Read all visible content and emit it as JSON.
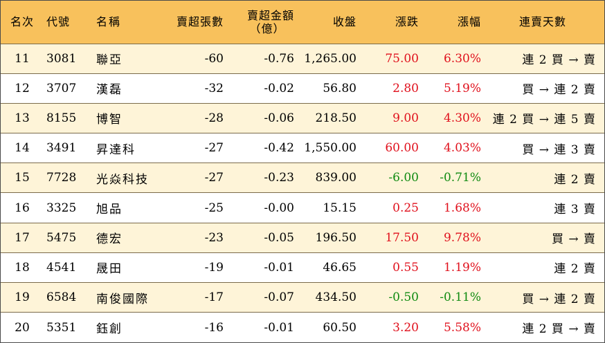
{
  "headers": {
    "rank": "名次",
    "code": "代號",
    "name": "名稱",
    "net_sell_lots": "賣超張數",
    "net_sell_amount_line1": "賣超金額",
    "net_sell_amount_line2": "（億）",
    "close": "收盤",
    "change": "漲跌",
    "change_pct": "漲幅",
    "streak": "連賣天數"
  },
  "rows": [
    {
      "rank": "11",
      "code": "3081",
      "name": "聯亞",
      "lots": "-60",
      "amount": "-0.76",
      "close": "1,265.00",
      "change": "75.00",
      "pct": "6.30%",
      "streak": "連 2 買 → 賣",
      "dir": "pos"
    },
    {
      "rank": "12",
      "code": "3707",
      "name": "漢磊",
      "lots": "-32",
      "amount": "-0.02",
      "close": "56.80",
      "change": "2.80",
      "pct": "5.19%",
      "streak": "買 → 連 2 賣",
      "dir": "pos"
    },
    {
      "rank": "13",
      "code": "8155",
      "name": "博智",
      "lots": "-28",
      "amount": "-0.06",
      "close": "218.50",
      "change": "9.00",
      "pct": "4.30%",
      "streak": "連 2 買 → 連 5 賣",
      "dir": "pos"
    },
    {
      "rank": "14",
      "code": "3491",
      "name": "昇達科",
      "lots": "-27",
      "amount": "-0.42",
      "close": "1,550.00",
      "change": "60.00",
      "pct": "4.03%",
      "streak": "買 → 連 3 賣",
      "dir": "pos"
    },
    {
      "rank": "15",
      "code": "7728",
      "name": "光焱科技",
      "lots": "-27",
      "amount": "-0.23",
      "close": "839.00",
      "change": "-6.00",
      "pct": "-0.71%",
      "streak": "連 2 賣",
      "dir": "neg"
    },
    {
      "rank": "16",
      "code": "3325",
      "name": "旭品",
      "lots": "-25",
      "amount": "-0.00",
      "close": "15.15",
      "change": "0.25",
      "pct": "1.68%",
      "streak": "連 3 賣",
      "dir": "pos"
    },
    {
      "rank": "17",
      "code": "5475",
      "name": "德宏",
      "lots": "-23",
      "amount": "-0.05",
      "close": "196.50",
      "change": "17.50",
      "pct": "9.78%",
      "streak": "買 → 賣",
      "dir": "pos"
    },
    {
      "rank": "18",
      "code": "4541",
      "name": "晟田",
      "lots": "-19",
      "amount": "-0.01",
      "close": "46.65",
      "change": "0.55",
      "pct": "1.19%",
      "streak": "連 2 賣",
      "dir": "pos"
    },
    {
      "rank": "19",
      "code": "6584",
      "name": "南俊國際",
      "lots": "-17",
      "amount": "-0.07",
      "close": "434.50",
      "change": "-0.50",
      "pct": "-0.11%",
      "streak": "買 → 連 2 賣",
      "dir": "neg"
    },
    {
      "rank": "20",
      "code": "5351",
      "name": "鈺創",
      "lots": "-16",
      "amount": "-0.01",
      "close": "60.50",
      "change": "3.20",
      "pct": "5.58%",
      "streak": "連 2 買 → 賣",
      "dir": "pos"
    }
  ],
  "colors": {
    "header_bg": "#f8c15c",
    "row_alt_bg": "#fef4d8",
    "up": "#e0101c",
    "down": "#0f8a10"
  }
}
